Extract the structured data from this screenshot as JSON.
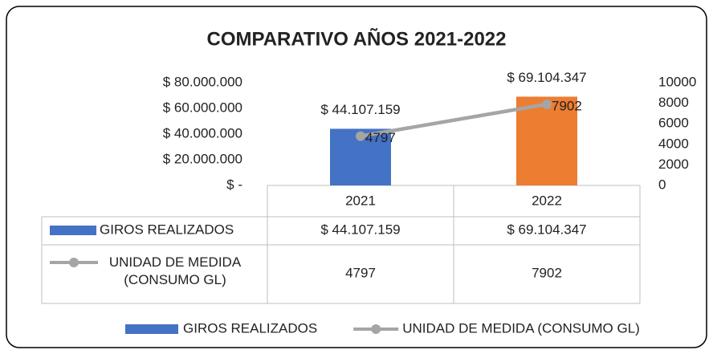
{
  "chart_data": {
    "type": "bar-line",
    "title": "COMPARATIVO AÑOS 2021-2022",
    "categories": [
      "2021",
      "2022"
    ],
    "series": [
      {
        "name": "GIROS REALIZADOS",
        "type": "bar",
        "color": "#4472c4",
        "point_colors": [
          "#4472c4",
          "#ed7d31"
        ],
        "values": [
          44107159,
          69104347
        ],
        "value_labels": [
          "$ 44.107.159",
          "$ 69.104.347"
        ]
      },
      {
        "name": "UNIDAD DE MEDIDA (CONSUMO GL)",
        "type": "line",
        "axis": "y2",
        "color": "#a5a5a5",
        "values": [
          4797,
          7902
        ]
      }
    ],
    "ylim": [
      0,
      80000000
    ],
    "yticks": [
      {
        "value": 0,
        "label": "$ -"
      },
      {
        "value": 20000000,
        "label": "$ 20.000.000"
      },
      {
        "value": 40000000,
        "label": "$ 40.000.000"
      },
      {
        "value": 60000000,
        "label": "$ 60.000.000"
      },
      {
        "value": 80000000,
        "label": "$ 80.000.000"
      }
    ],
    "y2lim": [
      0,
      10000
    ],
    "y2ticks": [
      0,
      2000,
      4000,
      6000,
      8000,
      10000
    ],
    "grid": false,
    "legend": "bottom",
    "data_table": true
  }
}
